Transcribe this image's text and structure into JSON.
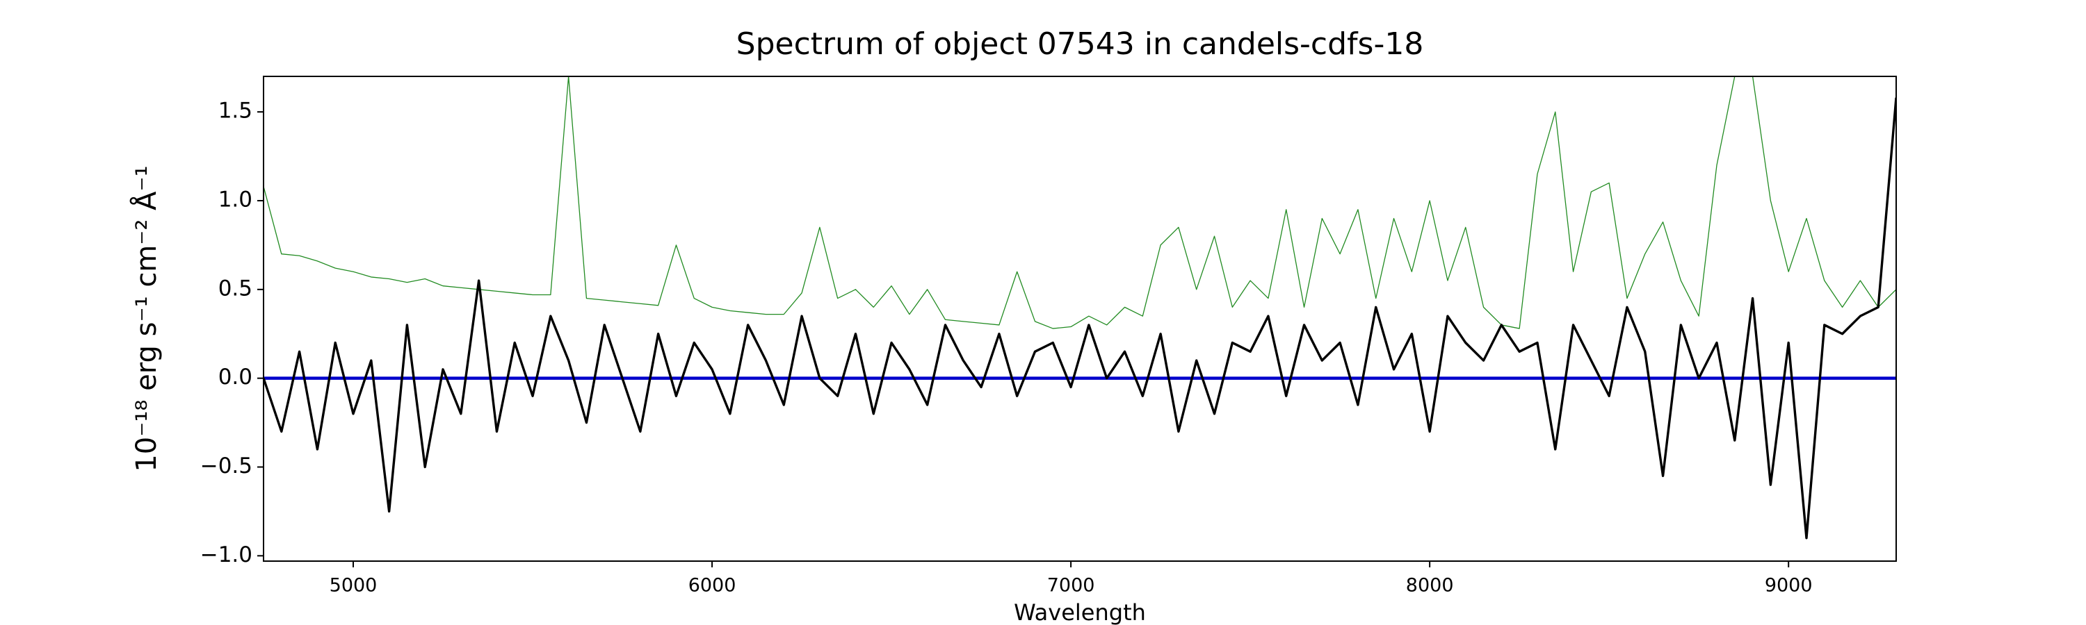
{
  "chart_data": {
    "type": "line",
    "title": "Spectrum of object 07543 in candels-cdfs-18",
    "x_label": "Wavelength",
    "y_label": "10⁻¹⁸ erg s⁻¹ cm⁻² Å⁻¹",
    "xlim": [
      4750,
      9300
    ],
    "ylim": [
      -1.03,
      1.7
    ],
    "xticks": [
      5000,
      6000,
      7000,
      8000,
      9000
    ],
    "yticks": [
      {
        "value": -1.0,
        "label": "−1.0"
      },
      {
        "value": -0.5,
        "label": "−0.5"
      },
      {
        "value": 0.0,
        "label": "0.0"
      },
      0.5,
      {
        "value": 1.0,
        "label": "1.0"
      },
      1.5
    ],
    "grid": false,
    "x": [
      4750,
      4800,
      4850,
      4900,
      4950,
      5000,
      5050,
      5100,
      5150,
      5200,
      5250,
      5300,
      5350,
      5400,
      5450,
      5500,
      5550,
      5600,
      5650,
      5700,
      5750,
      5800,
      5850,
      5900,
      5950,
      6000,
      6050,
      6100,
      6150,
      6200,
      6250,
      6300,
      6350,
      6400,
      6450,
      6500,
      6550,
      6600,
      6650,
      6700,
      6750,
      6800,
      6850,
      6900,
      6950,
      7000,
      7050,
      7100,
      7150,
      7200,
      7250,
      7300,
      7350,
      7400,
      7450,
      7500,
      7550,
      7600,
      7650,
      7700,
      7750,
      7800,
      7850,
      7900,
      7950,
      8000,
      8050,
      8100,
      8150,
      8200,
      8250,
      8300,
      8350,
      8400,
      8450,
      8500,
      8550,
      8600,
      8650,
      8700,
      8750,
      8800,
      8850,
      8900,
      8950,
      9000,
      9050,
      9100,
      9150,
      9200,
      9250,
      9300
    ],
    "series": [
      {
        "color": "#228b22",
        "values": [
          1.08,
          0.7,
          0.69,
          0.66,
          0.62,
          0.6,
          0.57,
          0.56,
          0.54,
          0.56,
          0.52,
          0.51,
          0.5,
          0.49,
          0.48,
          0.47,
          0.47,
          1.7,
          0.45,
          0.44,
          0.43,
          0.42,
          0.41,
          0.75,
          0.45,
          0.4,
          0.38,
          0.37,
          0.36,
          0.36,
          0.48,
          0.85,
          0.45,
          0.5,
          0.4,
          0.52,
          0.36,
          0.5,
          0.33,
          0.32,
          0.31,
          0.3,
          0.6,
          0.32,
          0.28,
          0.29,
          0.35,
          0.3,
          0.4,
          0.35,
          0.75,
          0.85,
          0.5,
          0.8,
          0.4,
          0.55,
          0.45,
          0.95,
          0.4,
          0.9,
          0.7,
          0.95,
          0.45,
          0.9,
          0.6,
          1.0,
          0.55,
          0.85,
          0.4,
          0.3,
          0.28,
          1.15,
          1.5,
          0.6,
          1.05,
          1.1,
          0.45,
          0.7,
          0.88,
          0.55,
          0.35,
          1.2,
          1.7,
          1.7,
          1.0,
          0.6,
          0.9,
          0.55,
          0.4,
          0.55,
          0.4,
          0.5
        ]
      },
      {
        "color": "#0000cc",
        "x": [
          4750,
          9300
        ],
        "values": [
          0,
          0
        ]
      },
      {
        "color": "#000000",
        "values": [
          0.0,
          -0.3,
          0.15,
          -0.4,
          0.2,
          -0.2,
          0.1,
          -0.75,
          0.3,
          -0.5,
          0.05,
          -0.2,
          0.55,
          -0.3,
          0.2,
          -0.1,
          0.35,
          0.1,
          -0.25,
          0.3,
          0.0,
          -0.3,
          0.25,
          -0.1,
          0.2,
          0.05,
          -0.2,
          0.3,
          0.1,
          -0.15,
          0.35,
          0.0,
          -0.1,
          0.25,
          -0.2,
          0.2,
          0.05,
          -0.15,
          0.3,
          0.1,
          -0.05,
          0.25,
          -0.1,
          0.15,
          0.2,
          -0.05,
          0.3,
          0.0,
          0.15,
          -0.1,
          0.25,
          -0.3,
          0.1,
          -0.2,
          0.2,
          0.15,
          0.35,
          -0.1,
          0.3,
          0.1,
          0.2,
          -0.15,
          0.4,
          0.05,
          0.25,
          -0.3,
          0.35,
          0.2,
          0.1,
          0.3,
          0.15,
          0.2,
          -0.4,
          0.3,
          0.1,
          -0.1,
          0.4,
          0.15,
          -0.55,
          0.3,
          0.0,
          0.2,
          -0.35,
          0.45,
          -0.6,
          0.2,
          -0.9,
          0.3,
          0.25,
          0.35,
          0.4,
          1.58
        ]
      }
    ]
  }
}
